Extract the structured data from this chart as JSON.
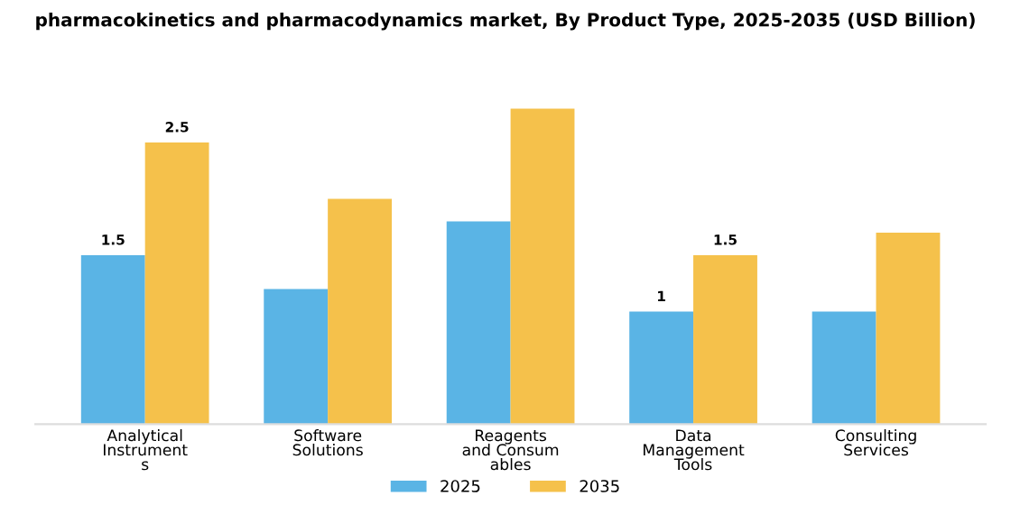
{
  "chart_data": {
    "type": "bar",
    "title": "pharmacokinetics and pharmacodynamics market, By Product Type, 2025-2035 (USD Billion)",
    "categories": [
      "Analytical\nInstrument\ns",
      "Software\nSolutions",
      "Reagents\nand Consum\nables",
      "Data\nManagement\nTools",
      "Consulting\nServices"
    ],
    "series": [
      {
        "name": "2025",
        "color": "#5ab4e5",
        "values": [
          1.5,
          1.2,
          1.8,
          1,
          1
        ],
        "value_labels": [
          "1.5",
          null,
          null,
          "1",
          null
        ]
      },
      {
        "name": "2035",
        "color": "#f5c14b",
        "values": [
          2.5,
          2.0,
          2.8,
          1.5,
          1.7
        ],
        "value_labels": [
          "2.5",
          null,
          null,
          "1.5",
          null
        ]
      }
    ],
    "legend": "bottom",
    "grid": false,
    "tick_labels": "x"
  }
}
